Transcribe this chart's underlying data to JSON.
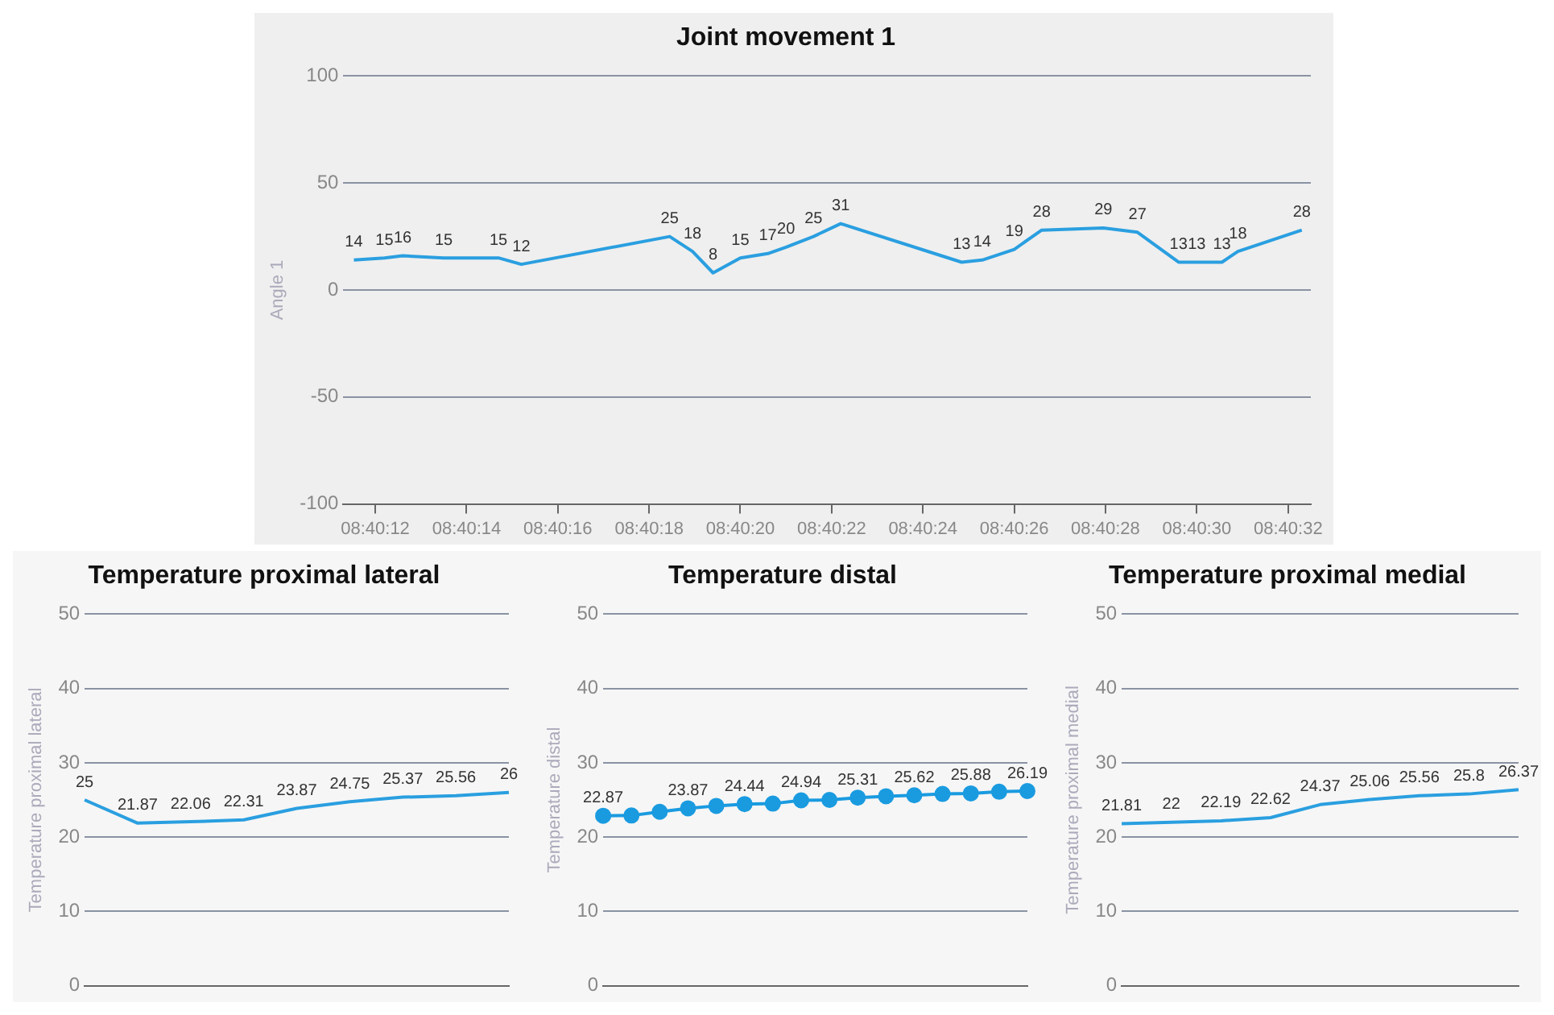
{
  "chart_data": [
    {
      "type": "line",
      "title": "Joint movement 1",
      "ylabel": "Angle 1",
      "x": [
        8.66987,
        8.670056,
        8.670167,
        8.670417,
        8.67075,
        8.670889,
        8.671792,
        8.671931,
        8.672056,
        8.672222,
        8.672389,
        8.6725,
        8.672667,
        8.672833,
        8.673569,
        8.673694,
        8.673889,
        8.674056,
        8.674431,
        8.674639,
        8.674889,
        8.675,
        8.675153,
        8.67525,
        8.675639
      ],
      "series": [
        {
          "color": "#2a9fe0",
          "values": [
            14,
            15,
            16,
            15,
            15,
            12,
            25,
            18,
            8,
            15,
            17,
            20,
            25,
            31,
            13,
            14,
            19,
            28,
            29,
            27,
            13,
            13,
            13,
            18,
            28
          ]
        }
      ],
      "xlim": [
        8.669806,
        8.675694
      ],
      "xticks": [
        {
          "value": 8.67,
          "label": "08:40:12"
        },
        {
          "value": 8.670556,
          "label": "08:40:14"
        },
        {
          "value": 8.671111,
          "label": "08:40:16"
        },
        {
          "value": 8.671667,
          "label": "08:40:18"
        },
        {
          "value": 8.672222,
          "label": "08:40:20"
        },
        {
          "value": 8.672778,
          "label": "08:40:22"
        },
        {
          "value": 8.673333,
          "label": "08:40:24"
        },
        {
          "value": 8.673889,
          "label": "08:40:26"
        },
        {
          "value": 8.674444,
          "label": "08:40:28"
        },
        {
          "value": 8.675,
          "label": "08:40:30"
        },
        {
          "value": 8.675556,
          "label": "08:40:32"
        }
      ],
      "ylim": [
        -100,
        100
      ],
      "yticks": [
        -100,
        -50,
        0,
        50,
        100
      ],
      "grid": "y",
      "marker": "none",
      "data_labels": true
    },
    {
      "type": "line",
      "title": "Temperature proximal lateral",
      "ylabel": "Temperature proximal lateral",
      "categories": [
        null,
        null,
        null,
        null,
        null,
        null,
        null,
        null,
        null
      ],
      "series": [
        {
          "color": "#2a9fe0",
          "values": [
            25,
            21.87,
            22.06,
            22.31,
            23.87,
            24.75,
            25.37,
            25.56,
            26
          ]
        }
      ],
      "ylim": [
        0,
        50
      ],
      "yticks": [
        0,
        10,
        20,
        30,
        40,
        50
      ],
      "grid": "y",
      "tick_labels": "y",
      "marker": "none",
      "data_labels": true
    },
    {
      "type": "line",
      "title": "Temperature distal",
      "ylabel": "Temperature distal",
      "categories": [
        null,
        null,
        null,
        null,
        null,
        null,
        null,
        null,
        null,
        null,
        null,
        null,
        null,
        null,
        null,
        null
      ],
      "series": [
        {
          "color": "#1a9be0",
          "values": [
            22.87,
            22.9,
            23.4,
            23.87,
            24.2,
            24.44,
            24.5,
            24.94,
            25.0,
            25.31,
            25.5,
            25.62,
            25.8,
            25.88,
            26.1,
            26.19
          ],
          "value_labels": [
            "22.87",
            null,
            null,
            "23.87",
            null,
            "24.44",
            null,
            "24.94",
            null,
            "25.31",
            null,
            "25.62",
            null,
            "25.88",
            null,
            "26.19"
          ]
        }
      ],
      "ylim": [
        0,
        50
      ],
      "yticks": [
        0,
        10,
        20,
        30,
        40,
        50
      ],
      "grid": "y",
      "tick_labels": "y",
      "marker": "circle"
    },
    {
      "type": "line",
      "title": "Temperature proximal medial",
      "ylabel": "Temperature proximal medial",
      "categories": [
        null,
        null,
        null,
        null,
        null,
        null,
        null,
        null,
        null
      ],
      "series": [
        {
          "color": "#2a9fe0",
          "values": [
            21.81,
            22,
            22.19,
            22.62,
            24.37,
            25.06,
            25.56,
            25.8,
            26.37
          ]
        }
      ],
      "ylim": [
        0,
        50
      ],
      "yticks": [
        0,
        10,
        20,
        30,
        40,
        50
      ],
      "grid": "y",
      "tick_labels": "y",
      "marker": "none",
      "data_labels": true
    }
  ]
}
